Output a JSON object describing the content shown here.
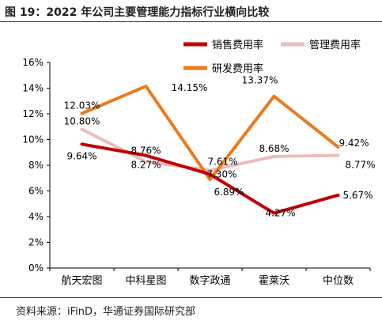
{
  "figure": {
    "title": "图 19：2022 年公司主要管理能力指标行业横向比较",
    "source": "资料来源：iFinD，华通证券国际研究部"
  },
  "chart_data": {
    "type": "line",
    "categories": [
      "航天宏图",
      "中科星图",
      "数字政通",
      "霍莱沃",
      "中位数"
    ],
    "series": [
      {
        "name": "销售费用率",
        "color": "#c00000",
        "values": [
          9.64,
          8.76,
          7.3,
          4.27,
          5.67
        ],
        "labels": [
          "9.64%",
          "8.76%",
          "7.30%",
          "4.27%",
          "5.67%"
        ]
      },
      {
        "name": "管理费用率",
        "color": "#ecbcbc",
        "values": [
          10.8,
          8.27,
          7.61,
          8.68,
          8.77
        ],
        "labels": [
          "10.80%",
          "8.27%",
          "7.61%",
          "8.68%",
          "8.77%"
        ]
      },
      {
        "name": "研发费用率",
        "color": "#ec7a1c",
        "values": [
          12.03,
          14.15,
          6.89,
          13.37,
          9.42
        ],
        "labels": [
          "12.03%",
          "14.15%",
          "6.89%",
          "13.37%",
          "9.42%"
        ]
      }
    ],
    "y_ticks": [
      "0%",
      "2%",
      "4%",
      "6%",
      "8%",
      "10%",
      "12%",
      "14%",
      "16%"
    ],
    "ylim": [
      0,
      16
    ],
    "ylabel": "",
    "xlabel": "",
    "grid": false,
    "legend_position": "top-right"
  }
}
